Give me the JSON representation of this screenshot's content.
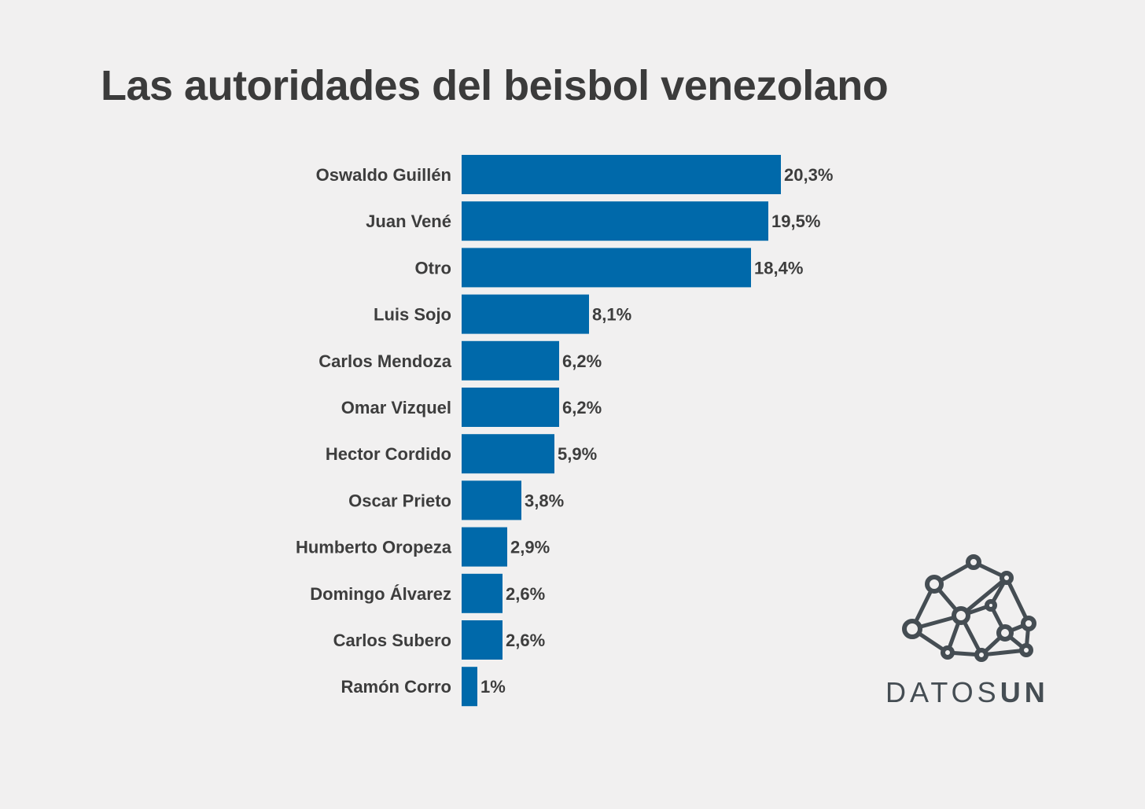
{
  "title": "Las autoridades del beisbol venezolano",
  "chart_data": {
    "type": "bar",
    "orientation": "horizontal",
    "title": "Las autoridades del beisbol venezolano",
    "categories": [
      "Oswaldo Guillén",
      "Juan Vené",
      "Otro",
      "Luis Sojo",
      "Carlos Mendoza",
      "Omar Vizquel",
      "Hector Cordido",
      "Oscar Prieto",
      "Humberto Oropeza",
      "Domingo Álvarez",
      "Carlos Subero",
      "Ramón Corro"
    ],
    "values": [
      20.3,
      19.5,
      18.4,
      8.1,
      6.2,
      6.2,
      5.9,
      3.8,
      2.9,
      2.6,
      2.6,
      1
    ],
    "value_labels": [
      "20,3%",
      "19,5%",
      "18,4%",
      "8,1%",
      "6,2%",
      "6,2%",
      "5,9%",
      "3,8%",
      "2,9%",
      "2,6%",
      "2,6%",
      "1%"
    ],
    "xlabel": "",
    "ylabel": "",
    "xlim": [
      0,
      20.3
    ],
    "grid": false,
    "bar_color": "#0069aa",
    "text_color": "#3d3d3d"
  },
  "logo": {
    "text_light": "DATOS",
    "text_heavy": "UN",
    "icon": "network-graph-icon",
    "color": "#454d53"
  },
  "colors": {
    "background": "#f1f0f0",
    "title": "#3b3b3b"
  }
}
